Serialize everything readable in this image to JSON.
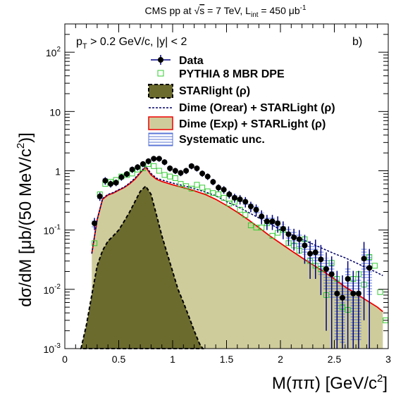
{
  "chart_data": {
    "type": "line",
    "title": "CMS pp at √s = 7 TeV, L_int = 450 μb⁻¹",
    "title_parts": {
      "pre": "CMS pp at ",
      "sqrt": "√",
      "s": "s",
      "mid": " = 7 TeV, L",
      "lsub": "int",
      "eq": " = 450 μb",
      "sup": "-1"
    },
    "annotation_parts": {
      "p": "p",
      "sub": "T",
      "rest": " > 0.2 GeV/c, |y| < 2"
    },
    "panel_label": "b)",
    "xlabel": "M(ππ) [GeV/c²]",
    "xlabel_parts": {
      "main": "M(ππ) [GeV/c",
      "sup": "2",
      "close": "]"
    },
    "ylabel": "dσ/dM [μb/(50 MeV/c²)]",
    "ylabel_parts": {
      "main": "dσ/dM [μb/(50 MeV/c",
      "sup": "2",
      "close": ")]"
    },
    "xlim": [
      0,
      3
    ],
    "ylim": [
      0.001,
      300
    ],
    "yscale": "log",
    "xticks": [
      "0",
      "0.5",
      "1",
      "1.5",
      "2",
      "2.5",
      "3"
    ],
    "yticks": [
      {
        "base": "10",
        "exp": "-3"
      },
      {
        "base": "10",
        "exp": "-2"
      },
      {
        "base": "10",
        "exp": "-1"
      },
      {
        "base": "1",
        "exp": ""
      },
      {
        "base": "10",
        "exp": ""
      },
      {
        "base": "10",
        "exp": "2"
      }
    ],
    "legend_position": "top-center",
    "series": [
      {
        "name": "Data",
        "color": "#000080",
        "x": [
          0.275,
          0.325,
          0.375,
          0.425,
          0.475,
          0.525,
          0.575,
          0.625,
          0.675,
          0.725,
          0.775,
          0.825,
          0.875,
          0.925,
          0.975,
          1.025,
          1.075,
          1.125,
          1.175,
          1.225,
          1.275,
          1.325,
          1.375,
          1.425,
          1.475,
          1.525,
          1.575,
          1.625,
          1.675,
          1.725,
          1.775,
          1.825,
          1.875,
          1.925,
          1.975,
          2.025,
          2.075,
          2.125,
          2.175,
          2.225,
          2.275,
          2.325,
          2.375,
          2.425,
          2.475,
          2.525,
          2.575,
          2.625,
          2.675,
          2.725,
          2.775,
          2.825
        ],
        "y": [
          0.13,
          0.37,
          0.68,
          0.6,
          0.63,
          0.78,
          0.88,
          1.05,
          1.15,
          1.3,
          1.45,
          1.6,
          1.6,
          1.4,
          1.1,
          1.0,
          0.92,
          1.0,
          1.2,
          1.1,
          0.9,
          0.8,
          0.65,
          0.52,
          0.48,
          0.4,
          0.35,
          0.33,
          0.3,
          0.25,
          0.22,
          0.17,
          0.14,
          0.14,
          0.13,
          0.105,
          0.085,
          0.075,
          0.07,
          0.055,
          0.04,
          0.042,
          0.032,
          0.022,
          0.018,
          0.0085,
          0.0072,
          0.015,
          0.0085,
          0.0085,
          0.033,
          0.023
        ],
        "yerr": [
          0.03,
          0.06,
          0.1,
          0.08,
          0.08,
          0.1,
          0.1,
          0.13,
          0.14,
          0.15,
          0.17,
          0.18,
          0.18,
          0.16,
          0.13,
          0.12,
          0.11,
          0.12,
          0.14,
          0.13,
          0.11,
          0.1,
          0.08,
          0.07,
          0.07,
          0.06,
          0.06,
          0.06,
          0.06,
          0.05,
          0.05,
          0.045,
          0.04,
          0.04,
          0.04,
          0.035,
          0.03,
          0.03,
          0.03,
          0.028,
          0.025,
          0.027,
          0.024,
          0.02,
          0.018,
          0.012,
          0.01,
          0.015,
          0.012,
          0.012,
          0.03,
          0.025
        ]
      },
      {
        "name": "PYTHIA 8 MBR DPE",
        "color": "#33cc33",
        "x": [
          0.275,
          0.325,
          0.375,
          0.425,
          0.475,
          0.525,
          0.575,
          0.625,
          0.675,
          0.725,
          0.775,
          0.825,
          0.875,
          0.925,
          0.975,
          1.025,
          1.075,
          1.125,
          1.175,
          1.225,
          1.275,
          1.325,
          1.375,
          1.425,
          1.475,
          1.525,
          1.575,
          1.625,
          1.675,
          1.725,
          1.775,
          1.825,
          1.875,
          1.925,
          1.975,
          2.025,
          2.075,
          2.125,
          2.175,
          2.225,
          2.275,
          2.325,
          2.375,
          2.425,
          2.475,
          2.525,
          2.575,
          2.625,
          2.675,
          2.725,
          2.775,
          2.825,
          2.875,
          2.925,
          2.975
        ],
        "y": [
          0.06,
          0.4,
          0.6,
          0.65,
          0.7,
          0.8,
          0.85,
          0.9,
          1.05,
          1.1,
          1.3,
          1.2,
          1.0,
          0.85,
          0.8,
          0.75,
          0.6,
          0.55,
          0.5,
          0.58,
          0.52,
          0.45,
          0.42,
          0.4,
          0.35,
          0.28,
          0.3,
          0.22,
          0.18,
          0.12,
          0.11,
          0.11,
          0.13,
          0.08,
          0.09,
          0.1,
          0.06,
          0.055,
          0.045,
          0.07,
          0.03,
          0.025,
          0.022,
          0.008,
          0.028,
          0.015,
          0.005,
          0.0045,
          0.015,
          0.018,
          0.012,
          0.035,
          0.025,
          0.009,
          0.003
        ]
      },
      {
        "name": "STARlight (ρ)",
        "color": "#6b6b2e",
        "x": [
          0.15,
          0.2,
          0.25,
          0.3,
          0.35,
          0.4,
          0.45,
          0.5,
          0.55,
          0.6,
          0.65,
          0.7,
          0.75,
          0.8,
          0.85,
          0.9,
          0.95,
          1.0,
          1.05,
          1.1,
          1.15,
          1.2,
          1.25,
          1.28
        ],
        "y": [
          0.001,
          0.0025,
          0.008,
          0.025,
          0.045,
          0.065,
          0.08,
          0.1,
          0.14,
          0.2,
          0.3,
          0.45,
          0.55,
          0.4,
          0.18,
          0.08,
          0.04,
          0.02,
          0.01,
          0.006,
          0.0035,
          0.002,
          0.0012,
          0.001
        ]
      },
      {
        "name": "Dime (Orear) + STARLight (ρ)",
        "color": "#000066",
        "x": [
          0.25,
          0.3,
          0.35,
          0.4,
          0.45,
          0.5,
          0.55,
          0.6,
          0.65,
          0.7,
          0.75,
          0.8,
          0.85,
          0.9,
          0.95,
          1.0,
          1.1,
          1.2,
          1.3,
          1.4,
          1.5,
          1.6,
          1.7,
          1.8,
          1.9,
          2.0,
          2.1,
          2.2,
          2.3,
          2.4,
          2.5,
          2.6,
          2.7,
          2.8,
          2.9,
          2.95
        ],
        "y": [
          0.04,
          0.15,
          0.34,
          0.4,
          0.43,
          0.48,
          0.53,
          0.62,
          0.75,
          0.95,
          1.2,
          0.9,
          0.75,
          0.7,
          0.66,
          0.62,
          0.56,
          0.5,
          0.44,
          0.38,
          0.3,
          0.25,
          0.2,
          0.16,
          0.13,
          0.1,
          0.085,
          0.07,
          0.058,
          0.048,
          0.04,
          0.034,
          0.028,
          0.023,
          0.019,
          0.017
        ]
      },
      {
        "name": "Dime (Exp) + STARLight (ρ)",
        "color": "#ee0000",
        "fill": "#cfcc9c",
        "x": [
          0.25,
          0.3,
          0.35,
          0.4,
          0.45,
          0.5,
          0.55,
          0.6,
          0.65,
          0.7,
          0.75,
          0.8,
          0.85,
          0.9,
          0.95,
          1.0,
          1.1,
          1.2,
          1.3,
          1.4,
          1.5,
          1.6,
          1.7,
          1.8,
          1.9,
          2.0,
          2.1,
          2.2,
          2.3,
          2.4,
          2.5,
          2.6,
          2.7,
          2.8,
          2.9,
          2.95
        ],
        "y": [
          0.04,
          0.15,
          0.33,
          0.39,
          0.42,
          0.47,
          0.52,
          0.6,
          0.72,
          0.92,
          1.15,
          0.85,
          0.72,
          0.66,
          0.62,
          0.58,
          0.52,
          0.46,
          0.4,
          0.33,
          0.26,
          0.2,
          0.15,
          0.11,
          0.08,
          0.06,
          0.045,
          0.034,
          0.026,
          0.02,
          0.015,
          0.011,
          0.0085,
          0.0065,
          0.005,
          0.0042
        ]
      },
      {
        "name": "Systematic unc.",
        "color": "#3355cc"
      }
    ]
  }
}
